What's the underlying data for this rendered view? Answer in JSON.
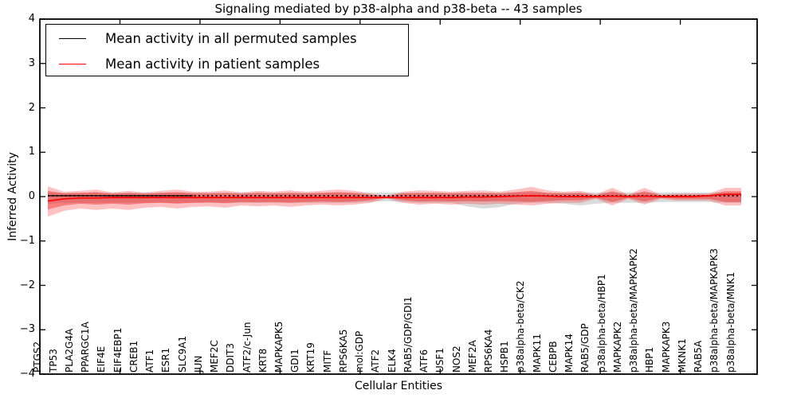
{
  "title": "Signaling mediated by p38-alpha and p38-beta -- 43 samples",
  "xlabel": "Cellular Entities",
  "ylabel": "Inferred Activity",
  "legend": {
    "items": [
      {
        "label": "Mean activity in all permuted samples",
        "color": "#000000"
      },
      {
        "label": "Mean activity in patient samples",
        "color": "#ff0000"
      }
    ]
  },
  "axes": {
    "y_tick_labels": [
      "4",
      "3",
      "2",
      "1",
      "0",
      "−1",
      "−2",
      "−3",
      "−4"
    ],
    "y_tick_values": [
      4,
      3,
      2,
      1,
      0,
      -1,
      -2,
      -3,
      -4
    ]
  },
  "chart_data": {
    "type": "line",
    "title": "Signaling mediated by p38-alpha and p38-beta -- 43 samples",
    "xlabel": "Cellular Entities",
    "ylabel": "Inferred Activity",
    "ylim": [
      -4,
      4
    ],
    "grid": false,
    "legend_position": "upper left",
    "categories": [
      "PTGS2",
      "TP53",
      "PLA2G4A",
      "PPARGC1A",
      "EIF4E",
      "EIF4EBP1",
      "CREB1",
      "ATF1",
      "ESR1",
      "SLC9A1",
      "JUN",
      "MEF2C",
      "DDIT3",
      "ATF2/c-Jun",
      "KRT8",
      "MAPKAPK5",
      "GDI1",
      "KRT19",
      "MITF",
      "RPS6KA5",
      "mol:GDP",
      "ATF2",
      "ELK4",
      "RAB5/GDP/GDI1",
      "ATF6",
      "USF1",
      "NOS2",
      "MEF2A",
      "RPS6KA4",
      "HSPB1",
      "p38alpha-beta/CK2",
      "MAPK11",
      "CEBPB",
      "MAPK14",
      "RAB5/GDP",
      "p38alpha-beta/HBP1",
      "MAPKAPK2",
      "p38alpha-beta/MAPKAPK2",
      "HBP1",
      "MAPKAPK3",
      "MKNK1",
      "RAB5A",
      "p38alpha-beta/MAPKAPK3",
      "p38alpha-beta/MNK1"
    ],
    "series": [
      {
        "name": "Mean activity in all permuted samples",
        "color": "#000000",
        "style": "dotted",
        "values": [
          0.02,
          0.02,
          0.02,
          0.02,
          0.02,
          0.02,
          0.02,
          0.02,
          0.02,
          0.02,
          0.02,
          0.02,
          0.02,
          0.02,
          0.02,
          0.02,
          0.02,
          0.02,
          0.02,
          0.02,
          0.02,
          0.02,
          0.02,
          0.02,
          0.02,
          0.02,
          0.02,
          0.02,
          0.02,
          0.02,
          0.02,
          0.02,
          0.02,
          0.02,
          0.02,
          0.02,
          0.02,
          0.02,
          0.02,
          0.02,
          0.02,
          0.02,
          0.02,
          0.02
        ]
      },
      {
        "name": "Mean activity in patient samples",
        "color": "#ff0000",
        "style": "solid",
        "values": [
          -0.1,
          -0.05,
          -0.03,
          -0.03,
          -0.02,
          -0.02,
          -0.02,
          -0.02,
          -0.02,
          -0.02,
          -0.02,
          -0.02,
          -0.02,
          -0.02,
          -0.02,
          -0.02,
          -0.02,
          -0.02,
          -0.02,
          -0.02,
          -0.02,
          -0.02,
          -0.02,
          -0.02,
          -0.02,
          -0.02,
          -0.01,
          -0.01,
          0.0,
          0.01,
          0.02,
          0.01,
          0.0,
          0.0,
          0.0,
          0.01,
          0.0,
          0.01,
          0.0,
          0.0,
          0.0,
          0.02,
          0.05,
          0.05
        ]
      }
    ],
    "bands": [
      {
        "name": "permuted-sample-range",
        "color": "rgba(150,150,150,0.35)",
        "upper": [
          0.09,
          0.09,
          0.09,
          0.09,
          0.09,
          0.09,
          0.09,
          0.09,
          0.09,
          0.09,
          0.09,
          0.09,
          0.09,
          0.09,
          0.09,
          0.09,
          0.09,
          0.09,
          0.09,
          0.09,
          0.09,
          0.09,
          0.09,
          0.09,
          0.09,
          0.09,
          0.09,
          0.09,
          0.09,
          0.09,
          0.09,
          0.09,
          0.09,
          0.09,
          0.09,
          0.09,
          0.09,
          0.09,
          0.09,
          0.09,
          0.09,
          0.09,
          0.09,
          0.09
        ],
        "lower": [
          -0.16,
          -0.14,
          -0.14,
          -0.14,
          -0.14,
          -0.14,
          -0.14,
          -0.14,
          -0.14,
          -0.14,
          -0.14,
          -0.14,
          -0.14,
          -0.14,
          -0.14,
          -0.14,
          -0.14,
          -0.14,
          -0.14,
          -0.14,
          -0.12,
          -0.1,
          -0.12,
          -0.14,
          -0.14,
          -0.14,
          -0.22,
          -0.27,
          -0.24,
          -0.16,
          -0.14,
          -0.14,
          -0.16,
          -0.2,
          -0.16,
          -0.14,
          -0.14,
          -0.14,
          -0.12,
          -0.12,
          -0.12,
          -0.12,
          -0.14,
          -0.14
        ]
      },
      {
        "name": "patient-outer-band",
        "color": "rgba(255,30,30,0.27)",
        "upper": [
          0.23,
          0.11,
          0.13,
          0.16,
          0.09,
          0.13,
          0.09,
          0.13,
          0.16,
          0.11,
          0.11,
          0.14,
          0.09,
          0.13,
          0.11,
          0.14,
          0.11,
          0.13,
          0.16,
          0.13,
          0.07,
          0.02,
          0.11,
          0.14,
          0.13,
          0.11,
          0.13,
          0.14,
          0.11,
          0.16,
          0.22,
          0.14,
          0.11,
          0.13,
          0.05,
          0.2,
          0.05,
          0.2,
          0.05,
          0.07,
          0.07,
          0.07,
          0.2,
          0.2
        ],
        "lower": [
          -0.45,
          -0.32,
          -0.27,
          -0.3,
          -0.27,
          -0.3,
          -0.25,
          -0.23,
          -0.27,
          -0.23,
          -0.22,
          -0.25,
          -0.2,
          -0.22,
          -0.2,
          -0.23,
          -0.2,
          -0.18,
          -0.2,
          -0.18,
          -0.14,
          -0.04,
          -0.14,
          -0.18,
          -0.16,
          -0.18,
          -0.16,
          -0.18,
          -0.16,
          -0.18,
          -0.2,
          -0.16,
          -0.14,
          -0.14,
          -0.05,
          -0.2,
          -0.05,
          -0.18,
          -0.05,
          -0.09,
          -0.09,
          -0.09,
          -0.2,
          -0.2
        ]
      },
      {
        "name": "patient-inner-band",
        "color": "rgba(235,25,25,0.40)",
        "upper": [
          0.13,
          0.07,
          0.08,
          0.1,
          0.06,
          0.08,
          0.06,
          0.08,
          0.1,
          0.07,
          0.07,
          0.08,
          0.06,
          0.08,
          0.07,
          0.08,
          0.07,
          0.08,
          0.1,
          0.08,
          0.04,
          0.01,
          0.07,
          0.08,
          0.08,
          0.07,
          0.08,
          0.08,
          0.07,
          0.1,
          0.13,
          0.08,
          0.07,
          0.08,
          0.03,
          0.12,
          0.03,
          0.12,
          0.03,
          0.04,
          0.04,
          0.04,
          0.12,
          0.12
        ],
        "lower": [
          -0.29,
          -0.2,
          -0.16,
          -0.18,
          -0.16,
          -0.18,
          -0.15,
          -0.14,
          -0.16,
          -0.14,
          -0.13,
          -0.15,
          -0.12,
          -0.13,
          -0.12,
          -0.14,
          -0.12,
          -0.11,
          -0.12,
          -0.11,
          -0.08,
          -0.02,
          -0.08,
          -0.11,
          -0.1,
          -0.11,
          -0.1,
          -0.11,
          -0.1,
          -0.11,
          -0.12,
          -0.1,
          -0.08,
          -0.08,
          -0.03,
          -0.12,
          -0.03,
          -0.11,
          -0.03,
          -0.05,
          -0.05,
          -0.05,
          -0.12,
          -0.12
        ]
      }
    ]
  }
}
